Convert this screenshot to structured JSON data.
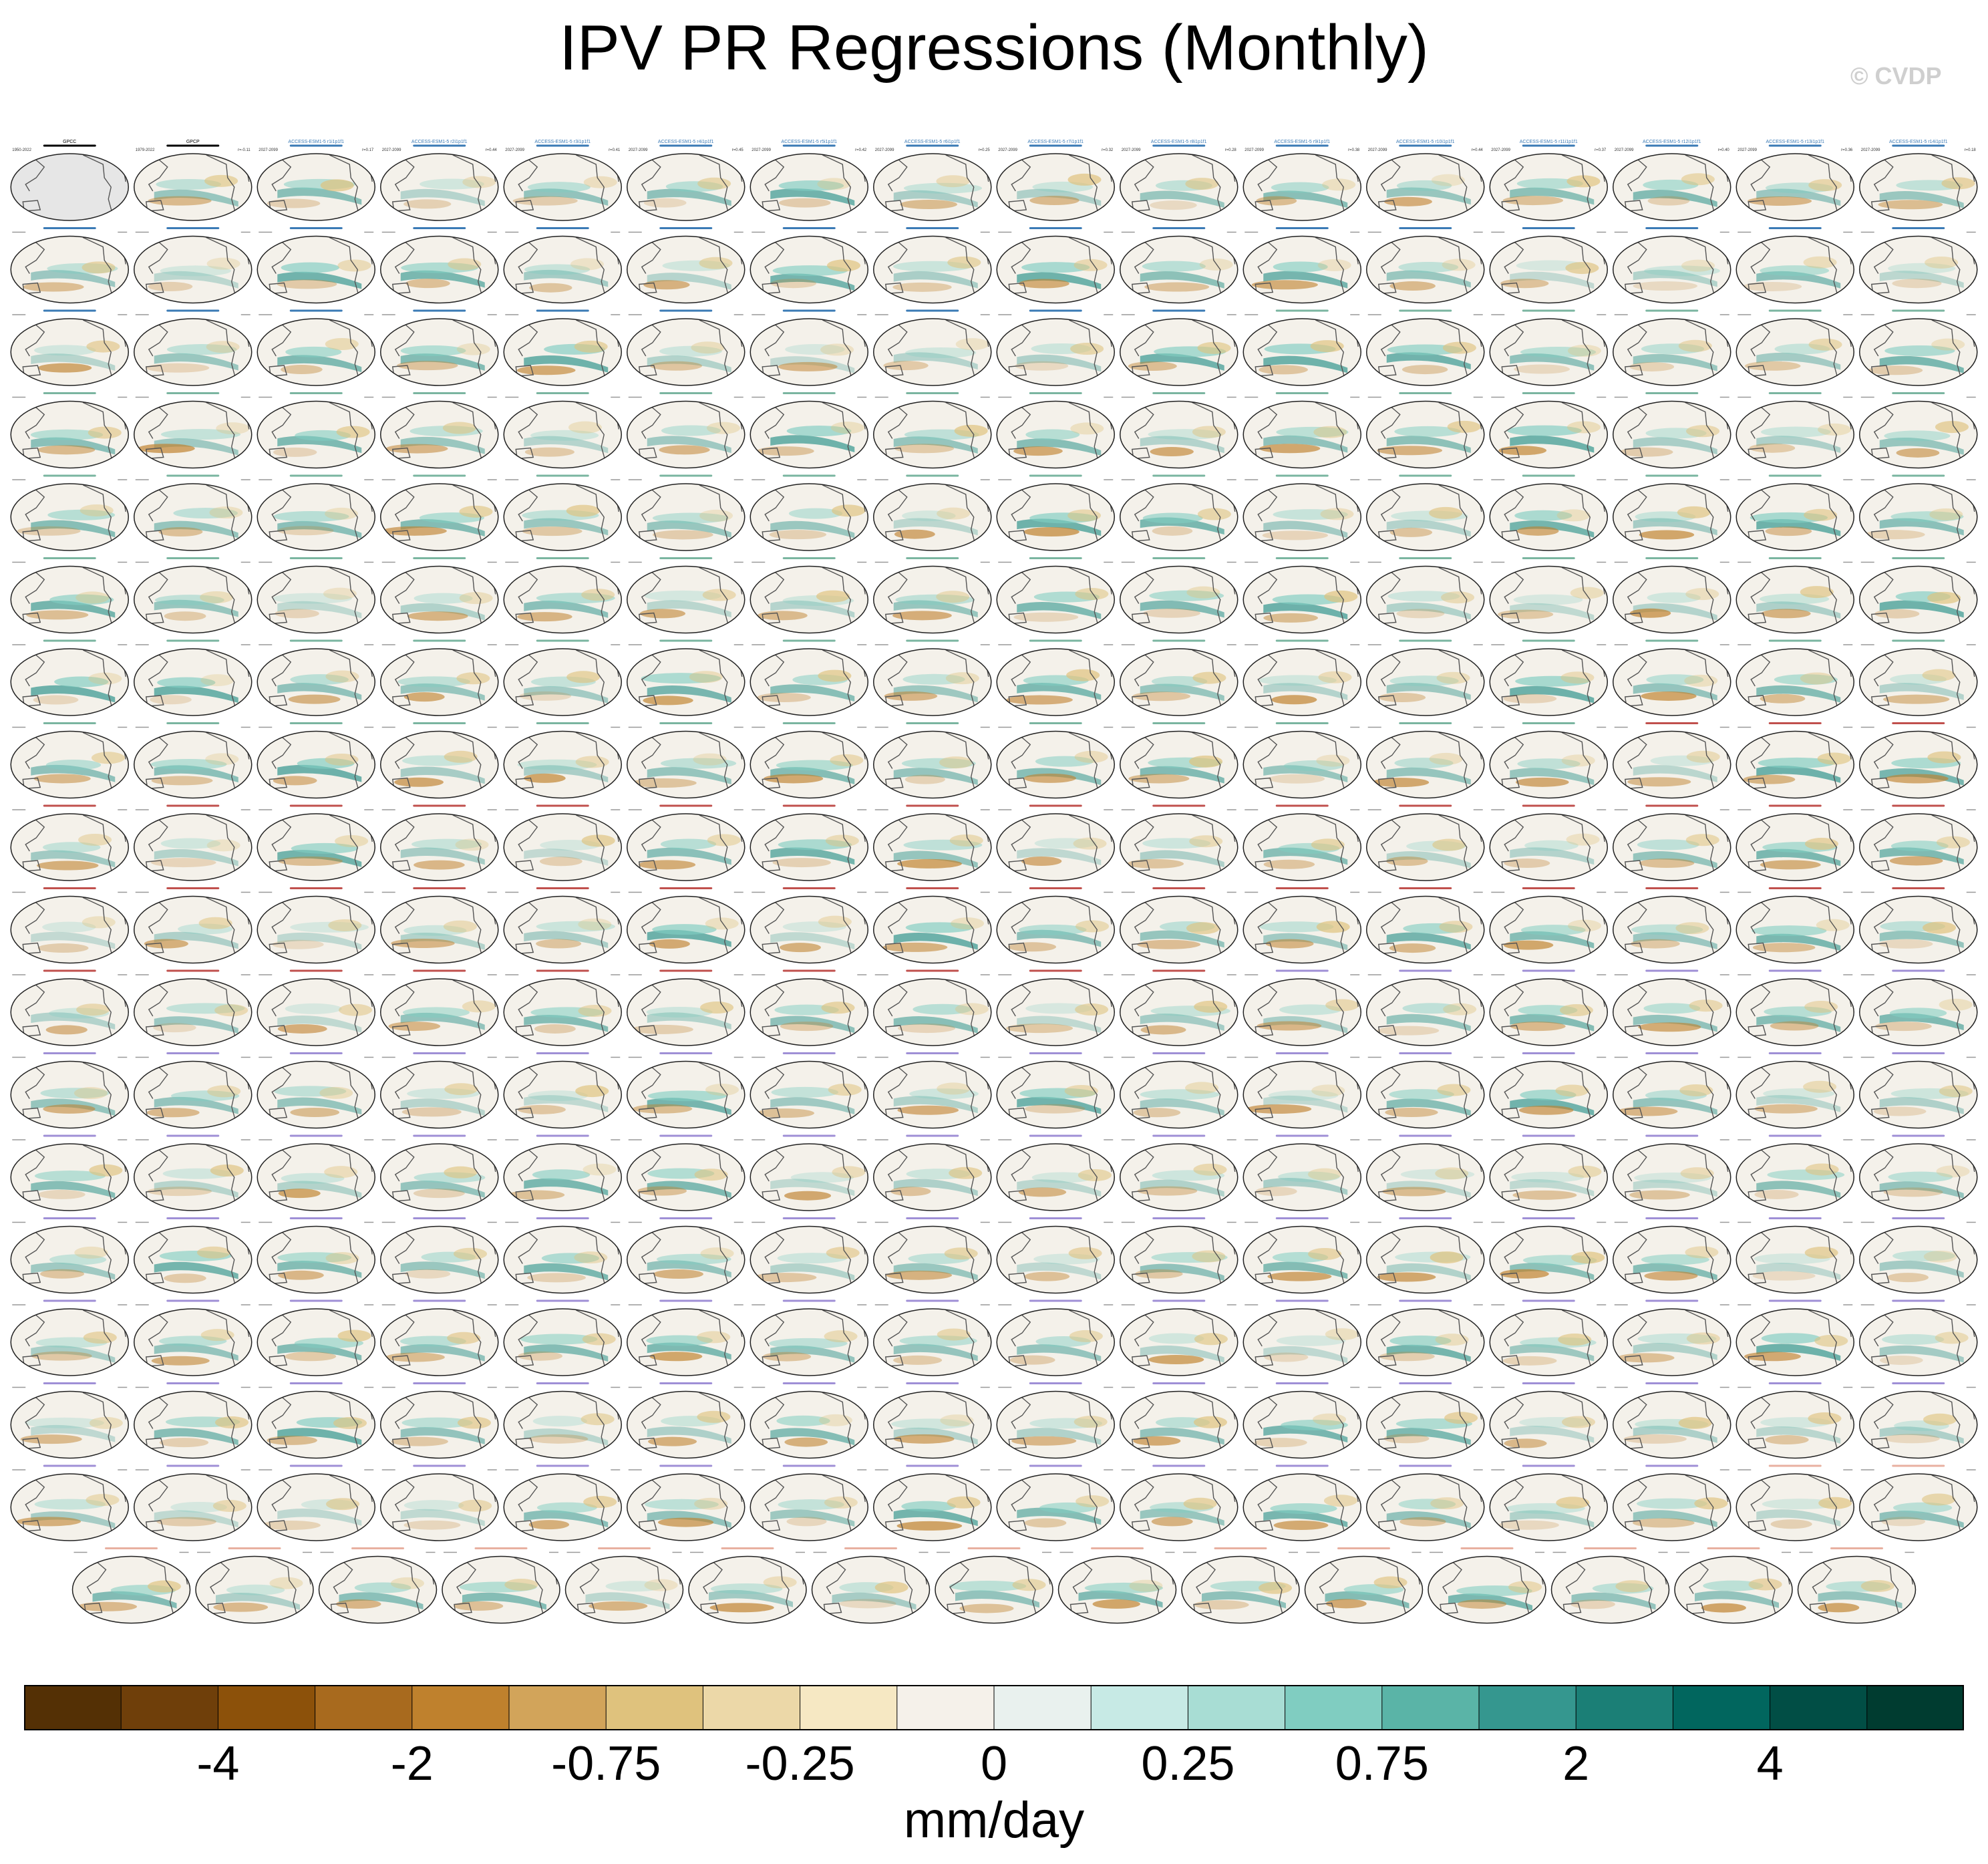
{
  "title": "IPV PR Regressions (Monthly)",
  "credit": "© CVDP",
  "panel_grid": {
    "columns": 16,
    "full_rows": 17,
    "last_row_panels": 15,
    "panel_labels_first_row": [
      "GPCC",
      "GPCP",
      "ACCESS-ESM1-5 r1i1p1f1",
      "ACCESS-ESM1-5 r2i1p1f1",
      "ACCESS-ESM1-5 r3i1p1f1",
      "ACCESS-ESM1-5 r4i1p1f1",
      "ACCESS-ESM1-5 r5i1p1f1",
      "ACCESS-ESM1-5 r6i1p1f1",
      "ACCESS-ESM1-5 r7i1p1f1",
      "ACCESS-ESM1-5 r8i1p1f1",
      "ACCESS-ESM1-5 r9i1p1f1",
      "ACCESS-ESM1-5 r10i1p1f1",
      "ACCESS-ESM1-5 r11i1p1f1",
      "ACCESS-ESM1-5 r12i1p1f1",
      "ACCESS-ESM1-5 r13i1p1f1",
      "ACCESS-ESM1-5 r14i1p1f1"
    ],
    "panel_periods_first_row": [
      "1950-2022",
      "1979-2022",
      "2027-2099",
      "2027-2099",
      "2027-2099",
      "2027-2099",
      "2027-2099",
      "2027-2099",
      "2027-2099",
      "2027-2099",
      "2027-2099",
      "2027-2099",
      "2027-2099",
      "2027-2099",
      "2027-2099",
      "2027-2099"
    ],
    "panel_values_first_row": [
      "",
      "r=-0.11",
      "r=0.17",
      "r=0.44",
      "r=0.41",
      "r=0.45",
      "r=0.42",
      "r=0.25",
      "r=0.32",
      "r=0.28",
      "r=0.38",
      "r=0.44",
      "r=0.37",
      "r=0.40",
      "r=0.36",
      "r=0.18"
    ],
    "label_colors": {
      "observation": "#000000",
      "ACCESS-ESM1-5": "#3a7ab5",
      "CanESM5": "#7ab5a0",
      "CESM1": "#c0504d",
      "CESM2": "#9f8fd6",
      "CESM2-WACCM": "#e8b0a0"
    }
  },
  "colorbar": {
    "colors": [
      "#543005",
      "#6f3f0a",
      "#8c510a",
      "#a86a1e",
      "#bf812d",
      "#d2a45a",
      "#dfc27d",
      "#ecd8a8",
      "#f6e8c3",
      "#f5f1ea",
      "#e9f1ee",
      "#c7eae5",
      "#a8ddd4",
      "#80cdc1",
      "#5ab4a7",
      "#35978f",
      "#1b7f76",
      "#01665e",
      "#014e45",
      "#003c30"
    ],
    "tick_labels": [
      "-4",
      "-2",
      "-0.75",
      "-0.25",
      "0",
      "0.25",
      "0.75",
      "2",
      "4"
    ],
    "unit": "mm/day"
  }
}
